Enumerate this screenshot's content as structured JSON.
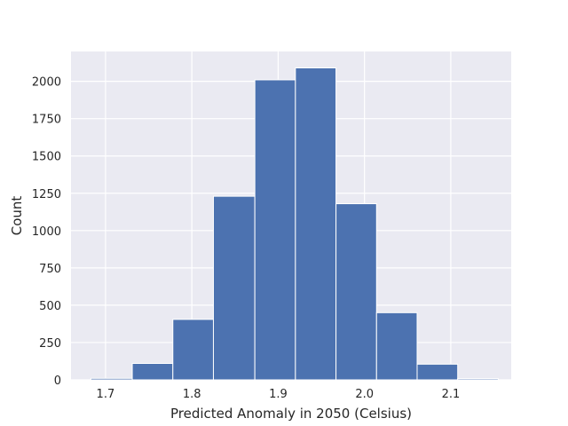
{
  "chart_data": {
    "type": "bar",
    "style": "histogram",
    "title": "",
    "xlabel": "Predicted Anomaly in 2050 (Celsius)",
    "ylabel": "Count",
    "xlim": [
      1.66,
      2.17
    ],
    "ylim": [
      0,
      2200
    ],
    "xticks": [
      1.7,
      1.8,
      1.9,
      2.0,
      2.1
    ],
    "xtick_labels": [
      "1.7",
      "1.8",
      "1.9",
      "2.0",
      "2.1"
    ],
    "yticks": [
      0,
      250,
      500,
      750,
      1000,
      1250,
      1500,
      1750,
      2000
    ],
    "ytick_labels": [
      "0",
      "250",
      "500",
      "750",
      "1000",
      "1250",
      "1500",
      "1750",
      "2000"
    ],
    "bins": [
      {
        "start": 1.683,
        "end": 1.731,
        "count": 10
      },
      {
        "start": 1.731,
        "end": 1.778,
        "count": 110
      },
      {
        "start": 1.778,
        "end": 1.825,
        "count": 405
      },
      {
        "start": 1.825,
        "end": 1.873,
        "count": 1230
      },
      {
        "start": 1.873,
        "end": 1.92,
        "count": 2010
      },
      {
        "start": 1.92,
        "end": 1.967,
        "count": 2090
      },
      {
        "start": 1.967,
        "end": 2.014,
        "count": 1180
      },
      {
        "start": 2.014,
        "end": 2.061,
        "count": 450
      },
      {
        "start": 2.061,
        "end": 2.108,
        "count": 105
      },
      {
        "start": 2.108,
        "end": 2.155,
        "count": 8
      }
    ],
    "grid": true,
    "colors": {
      "bar": "#4c72b0",
      "background": "#eaeaf2",
      "grid": "#ffffff",
      "text": "#262626"
    }
  }
}
